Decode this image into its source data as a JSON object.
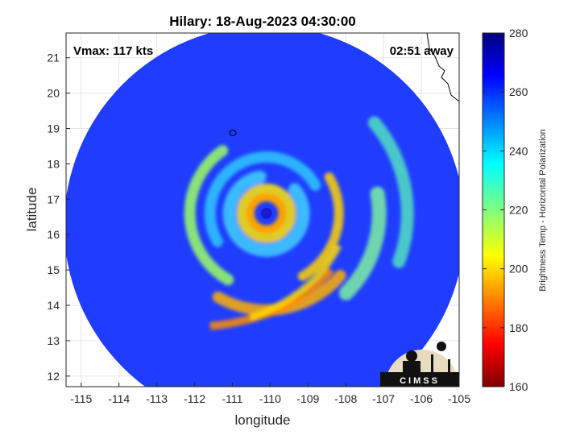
{
  "chart_data": {
    "type": "heatmap",
    "title": "Hilary: 18-Aug-2023 04:30:00",
    "xlabel": "longitude",
    "ylabel": "latitude",
    "xlim": [
      -115.4,
      -105
    ],
    "ylim": [
      11.7,
      21.7
    ],
    "x_ticks": [
      -115,
      -114,
      -113,
      -112,
      -111,
      -110,
      -109,
      -108,
      -107,
      -106,
      -105
    ],
    "y_ticks": [
      12,
      13,
      14,
      15,
      16,
      17,
      18,
      19,
      20,
      21
    ],
    "grid": true,
    "annotations": {
      "vmax": "Vmax: 117 kts",
      "time_offset": "02:51 away"
    },
    "storm_center": {
      "lon": -110.1,
      "lat": 16.6
    },
    "swath": {
      "center_lon": -110.15,
      "center_lat": 16.25,
      "radius_deg": 5.3
    },
    "colorbar": {
      "label": "Brightness Temp - Horizontal Polarization",
      "range": [
        160,
        280
      ],
      "ticks": [
        160,
        180,
        200,
        220,
        240,
        260,
        280
      ],
      "colormap": "jet"
    },
    "logo_text": "CIMSS"
  }
}
